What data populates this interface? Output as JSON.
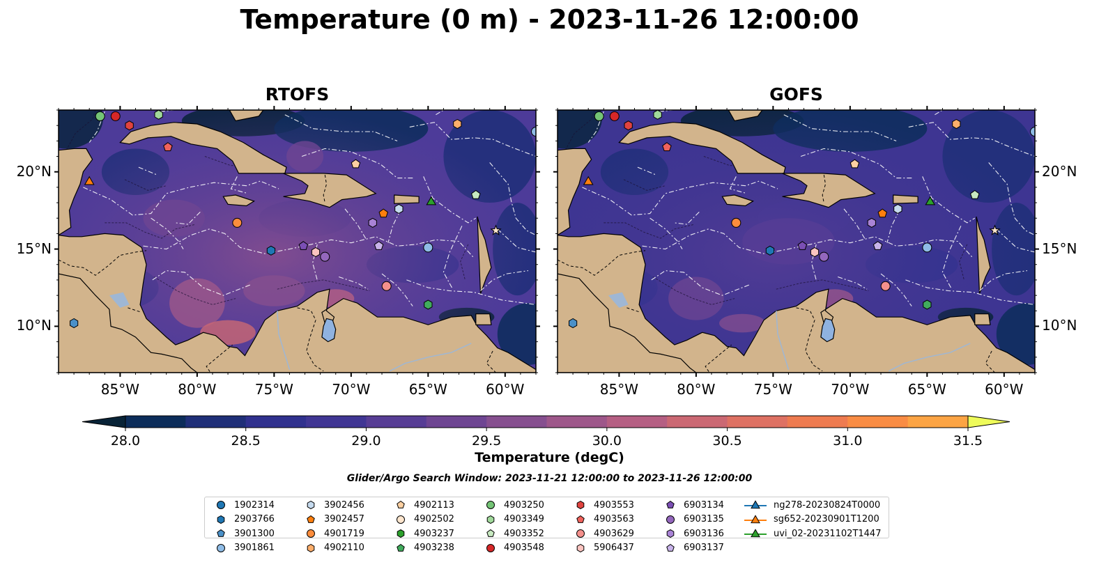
{
  "title": "Temperature (0 m) - 2023-11-26 12:00:00",
  "panels": [
    {
      "title": "RTOFS",
      "style": "rtofs"
    },
    {
      "title": "GOFS",
      "style": "gofs"
    }
  ],
  "map": {
    "lon_range": [
      -89,
      -58
    ],
    "lat_range": [
      7,
      24
    ],
    "lon_ticks": [
      {
        "value": -85,
        "label": "85°W"
      },
      {
        "value": -80,
        "label": "80°W"
      },
      {
        "value": -75,
        "label": "75°W"
      },
      {
        "value": -70,
        "label": "70°W"
      },
      {
        "value": -65,
        "label": "65°W"
      },
      {
        "value": -60,
        "label": "60°W"
      }
    ],
    "lat_ticks": [
      {
        "value": 20,
        "label": "20°N"
      },
      {
        "value": 15,
        "label": "15°N"
      },
      {
        "value": 10,
        "label": "10°N"
      }
    ],
    "land_color": "#d2b48c",
    "ocean_color": "#4b3c9a"
  },
  "colorbar": {
    "label": "Temperature (degC)",
    "ticks": [
      "28.0",
      "28.5",
      "29.0",
      "29.5",
      "30.0",
      "30.5",
      "31.0",
      "31.5"
    ],
    "colors": [
      "#082337",
      "#0c2d5a",
      "#1f2f78",
      "#30318e",
      "#403694",
      "#573d95",
      "#6e4592",
      "#864f8f",
      "#9e578a",
      "#b55f83",
      "#cb6873",
      "#de7163",
      "#ee7b50",
      "#f98c44",
      "#fca444",
      "#fcc44a",
      "#f5e24e"
    ],
    "min_color": "#082337",
    "max_color": "#eefb5a"
  },
  "search_window": "Glider/Argo Search Window: 2023-11-21 12:00:00 to 2023-11-26 12:00:00",
  "floats": [
    {
      "id": "1902314",
      "color": "#1f77b4",
      "marker": "circle"
    },
    {
      "id": "2903766",
      "color": "#1f77b4",
      "marker": "hexagon"
    },
    {
      "id": "3901300",
      "color": "#4a90c8",
      "marker": "pentagon"
    },
    {
      "id": "3901861",
      "color": "#8fbce6",
      "marker": "circle"
    },
    {
      "id": "3902456",
      "color": "#c6dbef",
      "marker": "hexagon"
    },
    {
      "id": "3902457",
      "color": "#ff7f0e",
      "marker": "pentagon"
    },
    {
      "id": "4901719",
      "color": "#fd8d3c",
      "marker": "circle"
    },
    {
      "id": "4902110",
      "color": "#fdae6b",
      "marker": "hexagon"
    },
    {
      "id": "4902113",
      "color": "#fdd0a2",
      "marker": "pentagon"
    },
    {
      "id": "4902502",
      "color": "#fee6ce",
      "marker": "circle"
    },
    {
      "id": "4903237",
      "color": "#2ca02c",
      "marker": "hexagon"
    },
    {
      "id": "4903238",
      "color": "#41ab5d",
      "marker": "pentagon"
    },
    {
      "id": "4903250",
      "color": "#74c476",
      "marker": "circle"
    },
    {
      "id": "4903349",
      "color": "#a1d99b",
      "marker": "hexagon"
    },
    {
      "id": "4903352",
      "color": "#c7e9c0",
      "marker": "pentagon"
    },
    {
      "id": "4903548",
      "color": "#d62728",
      "marker": "circle"
    },
    {
      "id": "4903553",
      "color": "#e0433f",
      "marker": "hexagon"
    },
    {
      "id": "4903563",
      "color": "#f0625c",
      "marker": "pentagon"
    },
    {
      "id": "4903629",
      "color": "#f4908c",
      "marker": "circle"
    },
    {
      "id": "5906437",
      "color": "#fbc4c0",
      "marker": "hexagon"
    },
    {
      "id": "6903134",
      "color": "#7b4fb4",
      "marker": "pentagon"
    },
    {
      "id": "6903135",
      "color": "#9467bd",
      "marker": "circle"
    },
    {
      "id": "6903136",
      "color": "#a983d6",
      "marker": "hexagon"
    },
    {
      "id": "6903137",
      "color": "#c8b3ea",
      "marker": "pentagon"
    }
  ],
  "gliders": [
    {
      "id": "ng278-20230824T0000",
      "color": "#1f77b4"
    },
    {
      "id": "sg652-20230901T1200",
      "color": "#ff7f0e"
    },
    {
      "id": "uvi_02-20231102T1447",
      "color": "#2ca02c"
    }
  ],
  "markers": [
    {
      "lon": -86.3,
      "lat": 23.6,
      "color": "#74c476",
      "marker": "circle"
    },
    {
      "lon": -85.3,
      "lat": 23.6,
      "color": "#d62728",
      "marker": "circle"
    },
    {
      "lon": -84.4,
      "lat": 23.0,
      "color": "#e0433f",
      "marker": "hexagon"
    },
    {
      "lon": -82.5,
      "lat": 23.7,
      "color": "#a1d99b",
      "marker": "hexagon"
    },
    {
      "lon": -81.9,
      "lat": 21.6,
      "color": "#f0625c",
      "marker": "pentagon"
    },
    {
      "lon": -63.1,
      "lat": 23.1,
      "color": "#fdae6b",
      "marker": "hexagon"
    },
    {
      "lon": -58.0,
      "lat": 22.6,
      "color": "#8fbce6",
      "marker": "circle"
    },
    {
      "lon": -69.7,
      "lat": 20.5,
      "color": "#fdd0a2",
      "marker": "pentagon"
    },
    {
      "lon": -61.9,
      "lat": 18.5,
      "color": "#c7e9c0",
      "marker": "pentagon"
    },
    {
      "lon": -67.9,
      "lat": 17.3,
      "color": "#ff7f0e",
      "marker": "pentagon"
    },
    {
      "lon": -66.9,
      "lat": 17.6,
      "color": "#c6dbef",
      "marker": "hexagon"
    },
    {
      "lon": -77.4,
      "lat": 16.7,
      "color": "#fd8d3c",
      "marker": "circle"
    },
    {
      "lon": -68.6,
      "lat": 16.7,
      "color": "#a983d6",
      "marker": "hexagon"
    },
    {
      "lon": -75.2,
      "lat": 14.9,
      "color": "#1f77b4",
      "marker": "hexagon"
    },
    {
      "lon": -73.1,
      "lat": 15.2,
      "color": "#7b4fb4",
      "marker": "pentagon"
    },
    {
      "lon": -72.3,
      "lat": 14.8,
      "color": "#fbc4c0",
      "marker": "hexagon"
    },
    {
      "lon": -71.7,
      "lat": 14.5,
      "color": "#9467bd",
      "marker": "circle"
    },
    {
      "lon": -68.2,
      "lat": 15.2,
      "color": "#c8b3ea",
      "marker": "pentagon"
    },
    {
      "lon": -65.0,
      "lat": 15.1,
      "color": "#8fbce6",
      "marker": "circle"
    },
    {
      "lon": -67.7,
      "lat": 12.6,
      "color": "#f4908c",
      "marker": "circle"
    },
    {
      "lon": -65.0,
      "lat": 11.4,
      "color": "#41ab5d",
      "marker": "hexagon"
    },
    {
      "lon": -88.0,
      "lat": 10.2,
      "color": "#4a90c8",
      "marker": "hexagon"
    },
    {
      "lon": -87.0,
      "lat": 19.4,
      "color": "#ff7f0e",
      "marker": "triangle"
    },
    {
      "lon": -64.8,
      "lat": 18.1,
      "color": "#2ca02c",
      "marker": "triangle"
    },
    {
      "lon": -60.6,
      "lat": 16.2,
      "color": "#fee6ce",
      "marker": "star"
    }
  ]
}
